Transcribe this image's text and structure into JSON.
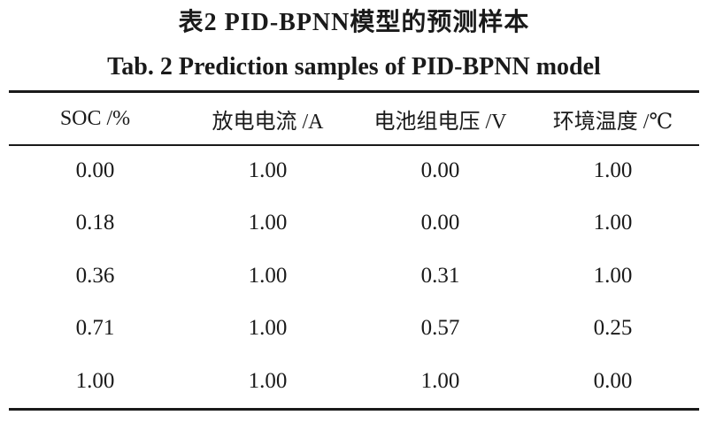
{
  "caption": {
    "cn": "表2  PID-BPNN模型的预测样本",
    "en": "Tab. 2  Prediction samples of PID-BPNN model"
  },
  "table": {
    "headers": [
      "SOC /%",
      "放电电流 /A",
      "电池组电压 /V",
      "环境温度 /℃"
    ],
    "rows": [
      [
        "0.00",
        "1.00",
        "0.00",
        "1.00"
      ],
      [
        "0.18",
        "1.00",
        "0.00",
        "1.00"
      ],
      [
        "0.36",
        "1.00",
        "0.31",
        "1.00"
      ],
      [
        "0.71",
        "1.00",
        "0.57",
        "0.25"
      ],
      [
        "1.00",
        "1.00",
        "1.00",
        "0.00"
      ]
    ]
  }
}
